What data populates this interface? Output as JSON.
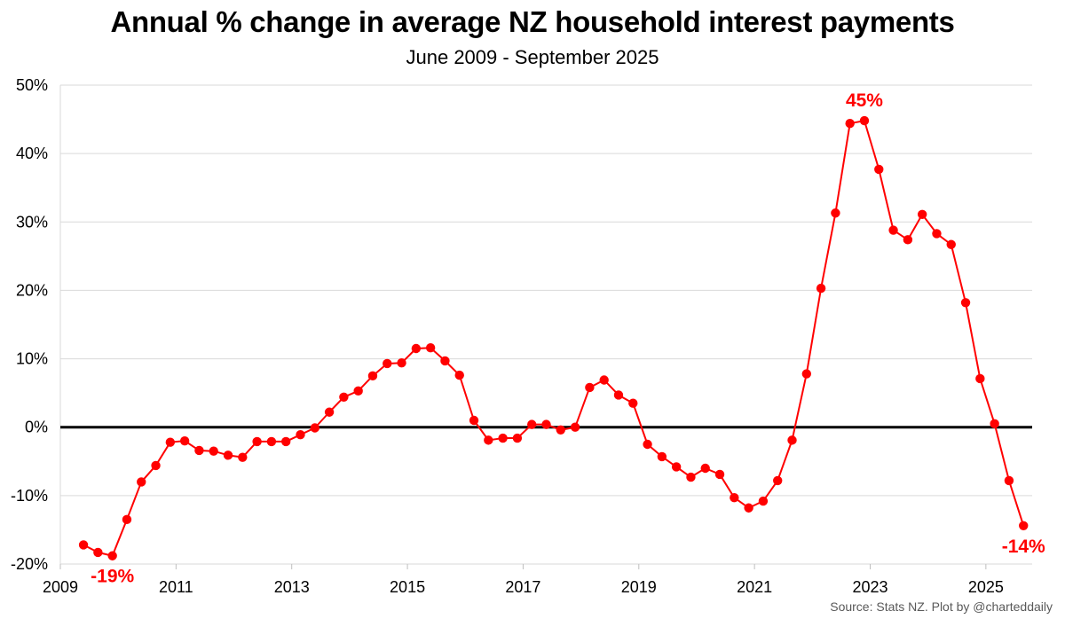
{
  "chart_data": {
    "type": "line",
    "title": "Annual % change in average NZ household interest payments",
    "subtitle": "June 2009 - September 2025",
    "source": "Source: Stats NZ.  Plot by @charteddaily",
    "xlabel": "",
    "ylabel": "",
    "ylim": [
      -20,
      50
    ],
    "xlim": [
      2009,
      2025.8
    ],
    "grid": "horizontal",
    "line_color": "#ff0000",
    "zero_line_color": "#000000",
    "y_ticks": [
      {
        "value": 50,
        "label": "50%"
      },
      {
        "value": 40,
        "label": "40%"
      },
      {
        "value": 30,
        "label": "30%"
      },
      {
        "value": 20,
        "label": "20%"
      },
      {
        "value": 10,
        "label": "10%"
      },
      {
        "value": 0,
        "label": "0%"
      },
      {
        "value": -10,
        "label": "-10%"
      },
      {
        "value": -20,
        "label": "-20%"
      }
    ],
    "x_ticks": [
      {
        "value": 2009,
        "label": "2009"
      },
      {
        "value": 2011,
        "label": "2011"
      },
      {
        "value": 2013,
        "label": "2013"
      },
      {
        "value": 2015,
        "label": "2015"
      },
      {
        "value": 2017,
        "label": "2017"
      },
      {
        "value": 2019,
        "label": "2019"
      },
      {
        "value": 2021,
        "label": "2021"
      },
      {
        "value": 2023,
        "label": "2023"
      },
      {
        "value": 2025,
        "label": "2025"
      }
    ],
    "series": [
      {
        "name": "Annual % change",
        "start_year": 2009.4,
        "step": 0.25,
        "values": [
          -17.2,
          -18.3,
          -18.8,
          -13.5,
          -8.0,
          -5.6,
          -2.2,
          -2.0,
          -3.4,
          -3.5,
          -4.1,
          -4.4,
          -2.1,
          -2.1,
          -2.1,
          -1.1,
          -0.1,
          2.2,
          4.4,
          5.3,
          7.5,
          9.3,
          9.4,
          11.5,
          11.6,
          9.7,
          7.6,
          1.0,
          -1.9,
          -1.6,
          -1.6,
          0.4,
          0.4,
          -0.4,
          0.0,
          5.8,
          6.9,
          4.7,
          3.5,
          -2.5,
          -4.3,
          -5.8,
          -7.3,
          -6.0,
          -6.9,
          -10.3,
          -11.8,
          -10.8,
          -7.8,
          -1.9,
          7.8,
          20.3,
          31.3,
          44.4,
          44.8,
          37.7,
          28.8,
          27.4,
          31.1,
          28.3,
          26.7,
          18.2,
          7.1,
          0.5,
          -7.8,
          -14.4
        ]
      }
    ],
    "annotations": [
      {
        "text": "-19%",
        "year": 2009.9,
        "value": -18.8,
        "position": "below"
      },
      {
        "text": "45%",
        "year": 2022.9,
        "value": 44.8,
        "position": "above"
      },
      {
        "text": "-14%",
        "year": 2025.65,
        "value": -14.4,
        "position": "below"
      }
    ]
  }
}
